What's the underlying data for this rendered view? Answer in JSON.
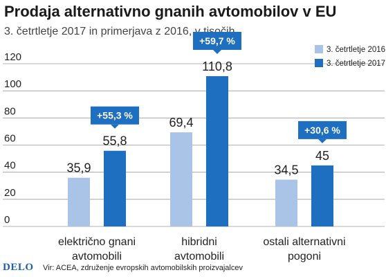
{
  "title": "Prodaja alternativno gnanih avtomobilov v EU",
  "subtitle": "3. četrtletje 2017 in primerjava z 2016, v tisočih",
  "chart_data": {
    "type": "bar",
    "categories": [
      [
        "električno gnani",
        "avtomobili"
      ],
      [
        "hibridni",
        "avtomobili"
      ],
      [
        "ostali alternativni",
        "pogoni"
      ]
    ],
    "series": [
      {
        "name": "3. četrtletje 2016",
        "color": "#a9c4e6",
        "values": [
          35.9,
          69.4,
          34.5
        ],
        "labels": [
          "35,9",
          "69,4",
          "34,5"
        ]
      },
      {
        "name": "3. četrtletje 2017",
        "color": "#1f6fc0",
        "values": [
          55.8,
          110.8,
          45
        ],
        "labels": [
          "55,8",
          "110,8",
          "45"
        ]
      }
    ],
    "changes": [
      "+55,3 %",
      "+59,7 %",
      "+30,6 %"
    ],
    "change_color": "#1f6fc0",
    "yticks": [
      0,
      20,
      40,
      60,
      80,
      100,
      120
    ],
    "ylim": [
      0,
      120
    ],
    "grid": true,
    "legend_position": "top-right"
  },
  "footer": {
    "logo": "DELO",
    "source": "Vir: ACEA, združenje evropskih avtomobilskih proizvajalcev"
  }
}
